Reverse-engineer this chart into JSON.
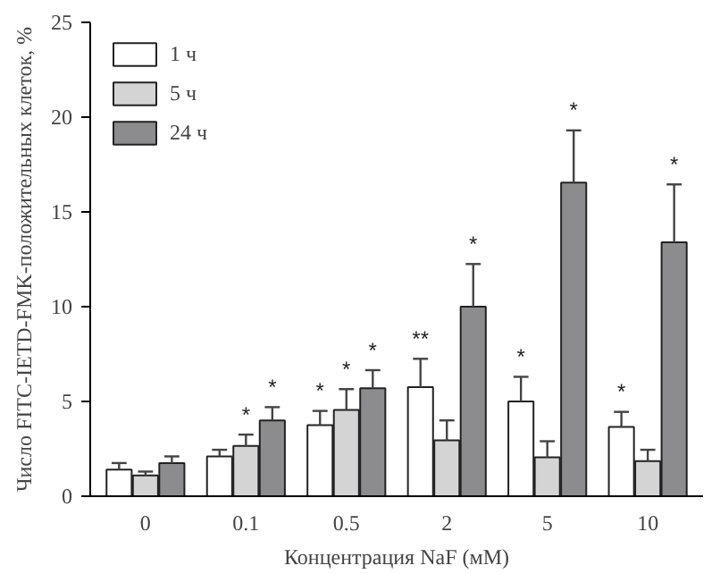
{
  "chart_data": {
    "type": "bar",
    "xlabel": "Концентрация NaF (мМ)",
    "ylabel": "Число FITC-IETD-FMK-положительных клеток, %",
    "categories": [
      "0",
      "0.1",
      "0.5",
      "2",
      "5",
      "10"
    ],
    "series": [
      {
        "name": "1 ч",
        "color": "#ffffff",
        "values": [
          1.4,
          2.1,
          3.75,
          5.75,
          5.0,
          3.65
        ],
        "errors": [
          [
            1.4,
            1.75
          ],
          [
            2.1,
            2.45
          ],
          [
            3.75,
            4.5
          ],
          [
            5.75,
            7.25
          ],
          [
            5.0,
            6.3
          ],
          [
            3.65,
            4.45
          ]
        ],
        "value_labels": [
          null,
          null,
          "*",
          "**",
          "*",
          "*"
        ]
      },
      {
        "name": "5 ч",
        "color": "#d4d4d4",
        "values": [
          1.1,
          2.65,
          4.55,
          2.95,
          2.05,
          1.85
        ],
        "errors": [
          [
            1.1,
            1.3
          ],
          [
            2.65,
            3.25
          ],
          [
            4.55,
            5.65
          ],
          [
            2.95,
            4.0
          ],
          [
            2.05,
            2.9
          ],
          [
            1.85,
            2.45
          ]
        ],
        "value_labels": [
          null,
          "*",
          "*",
          null,
          null,
          null
        ]
      },
      {
        "name": "24 ч",
        "color": "#8c8c8e",
        "values": [
          1.75,
          4.0,
          5.7,
          10.0,
          16.55,
          13.4
        ],
        "errors": [
          [
            1.75,
            2.1
          ],
          [
            4.0,
            4.7
          ],
          [
            5.7,
            6.65
          ],
          [
            10.0,
            12.25
          ],
          [
            16.55,
            19.3
          ],
          [
            13.4,
            16.45
          ]
        ],
        "value_labels": [
          null,
          "*",
          "*",
          "*",
          "*",
          "*"
        ]
      }
    ],
    "ylim": [
      0,
      25
    ],
    "yticks": [
      0,
      5,
      10,
      15,
      20,
      25
    ],
    "grid": false,
    "legend": "top left"
  }
}
